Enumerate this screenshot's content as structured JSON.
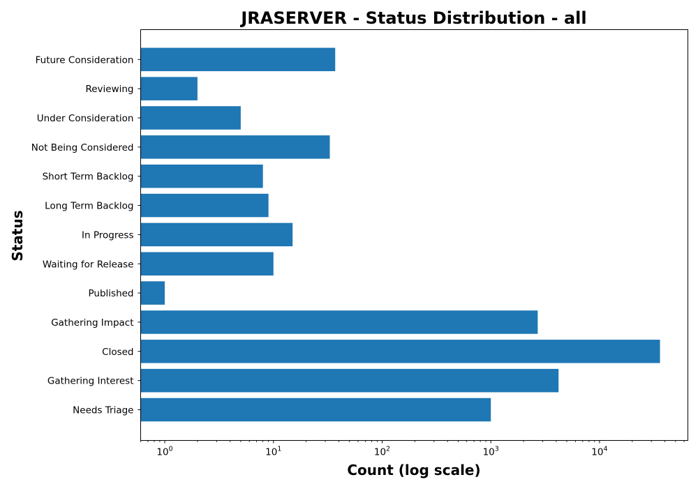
{
  "chart_data": {
    "type": "bar",
    "orientation": "horizontal",
    "title": "JRASERVER - Status Distribution - all",
    "xlabel": "Count (log scale)",
    "ylabel": "Status",
    "x_scale": "log",
    "xlim": [
      0.6,
      65000
    ],
    "x_ticks": [
      {
        "value": 1,
        "base": "10",
        "exp": "0"
      },
      {
        "value": 10,
        "base": "10",
        "exp": "1"
      },
      {
        "value": 100,
        "base": "10",
        "exp": "2"
      },
      {
        "value": 1000,
        "base": "10",
        "exp": "3"
      },
      {
        "value": 10000,
        "base": "10",
        "exp": "4"
      }
    ],
    "categories": [
      "Needs Triage",
      "Gathering Interest",
      "Closed",
      "Gathering Impact",
      "Published",
      "Waiting for Release",
      "In Progress",
      "Long Term Backlog",
      "Short Term Backlog",
      "Not Being Considered",
      "Under Consideration",
      "Reviewing",
      "Future Consideration"
    ],
    "values": [
      1000,
      4200,
      36000,
      2700,
      1,
      10,
      15,
      9,
      8,
      33,
      5,
      2,
      37
    ],
    "bar_color": "#1f77b4",
    "grid": false,
    "legend": "none"
  }
}
